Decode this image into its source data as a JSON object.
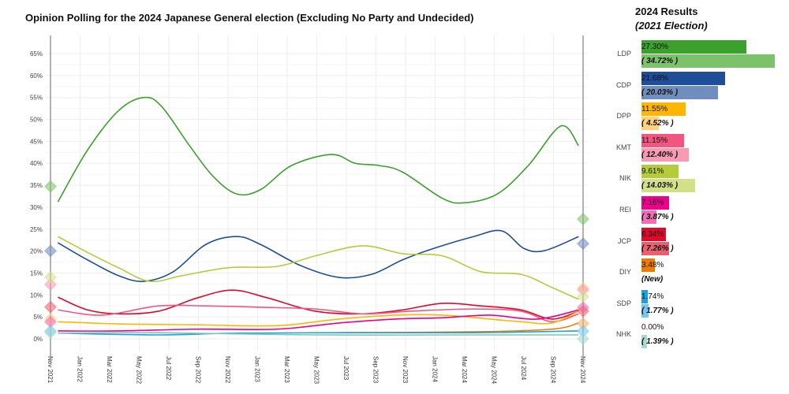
{
  "chart_data": {
    "type": "line",
    "title": "Opinion Polling for the 2024 Japanese General election (Excluding No Party and Undecided)",
    "x_ticks": [
      "Nov 2021",
      "Jan 2022",
      "Mar 2022",
      "May 2022",
      "Jul 2022",
      "Sep 2022",
      "Nov 2022",
      "Jan 2023",
      "Mar 2023",
      "May 2023",
      "Jul 2023",
      "Sep 2023",
      "Nov 2023",
      "Jan 2024",
      "Mar 2024",
      "May 2024",
      "Jul 2024",
      "Sep 2024",
      "Nov 2024"
    ],
    "y_ticks": [
      "0%",
      "5%",
      "10%",
      "15%",
      "20%",
      "25%",
      "30%",
      "35%",
      "40%",
      "45%",
      "50%",
      "55%",
      "60%",
      "65%"
    ],
    "ylim": [
      0,
      65
    ],
    "x_unit": "months since Nov 2021",
    "grid": true,
    "series": [
      {
        "name": "LDP",
        "color": "#3ca02c",
        "trend": [
          [
            0.5,
            31.2
          ],
          [
            2.5,
            43
          ],
          [
            4.6,
            52
          ],
          [
            6.3,
            55
          ],
          [
            7.5,
            53
          ],
          [
            9.4,
            44
          ],
          [
            11,
            37
          ],
          [
            12.6,
            33
          ],
          [
            14.2,
            34
          ],
          [
            16.3,
            39.5
          ],
          [
            19,
            42
          ],
          [
            20.6,
            40
          ],
          [
            22.2,
            39.5
          ],
          [
            23.8,
            38
          ],
          [
            26.5,
            32
          ],
          [
            28,
            31
          ],
          [
            30.2,
            33
          ],
          [
            32.3,
            39.5
          ],
          [
            34.5,
            48.5
          ],
          [
            35.7,
            44
          ]
        ]
      },
      {
        "name": "CDP",
        "color": "#1f4e99",
        "trend": [
          [
            0.5,
            21.9
          ],
          [
            2.5,
            18
          ],
          [
            4.6,
            14.4
          ],
          [
            6.3,
            13.1
          ],
          [
            8.3,
            15.3
          ],
          [
            10.5,
            21.5
          ],
          [
            12.6,
            23.3
          ],
          [
            14.2,
            21.5
          ],
          [
            16.9,
            16.7
          ],
          [
            19.5,
            14
          ],
          [
            21.7,
            14.7
          ],
          [
            23.8,
            18
          ],
          [
            25.9,
            20.6
          ],
          [
            28.6,
            23.3
          ],
          [
            30.5,
            24.6
          ],
          [
            32,
            20.6
          ],
          [
            33.4,
            20.1
          ],
          [
            35.7,
            23.3
          ]
        ]
      },
      {
        "name": "NIK",
        "color": "#b5cc3a",
        "trend": [
          [
            0.5,
            23.3
          ],
          [
            2.5,
            19.7
          ],
          [
            4.6,
            16.2
          ],
          [
            6.7,
            13.1
          ],
          [
            8.9,
            14.4
          ],
          [
            12,
            16.2
          ],
          [
            15.3,
            16.5
          ],
          [
            17.9,
            18.9
          ],
          [
            21.1,
            21.2
          ],
          [
            23.8,
            19.4
          ],
          [
            26.5,
            18.9
          ],
          [
            29.1,
            15.3
          ],
          [
            31.8,
            14.7
          ],
          [
            33.9,
            11.7
          ],
          [
            35.7,
            9
          ]
        ]
      },
      {
        "name": "JCP",
        "color": "#de0a2b",
        "trend": [
          [
            0.5,
            9.5
          ],
          [
            2.5,
            6.6
          ],
          [
            4.6,
            5.7
          ],
          [
            7.3,
            6.3
          ],
          [
            9.9,
            9.3
          ],
          [
            12.3,
            11.1
          ],
          [
            14.7,
            9.3
          ],
          [
            17.9,
            6.3
          ],
          [
            21.1,
            5.7
          ],
          [
            23.8,
            6.6
          ],
          [
            26.5,
            8.1
          ],
          [
            29.1,
            7.5
          ],
          [
            31.8,
            6.6
          ],
          [
            33.9,
            4.5
          ],
          [
            35.7,
            6.3
          ]
        ]
      },
      {
        "name": "KMT",
        "color": "#f2557f",
        "trend": [
          [
            0.5,
            6.6
          ],
          [
            3.5,
            5.4
          ],
          [
            7.3,
            7.5
          ],
          [
            10.5,
            7.5
          ],
          [
            14.2,
            7.2
          ],
          [
            17.9,
            6.8
          ],
          [
            21.1,
            5.7
          ],
          [
            24.3,
            6.3
          ],
          [
            28.6,
            6.8
          ],
          [
            31.8,
            6.3
          ],
          [
            33.9,
            3.9
          ],
          [
            35.7,
            5.7
          ]
        ]
      },
      {
        "name": "DPP",
        "color": "#ffb600",
        "trend": [
          [
            0.5,
            3.9
          ],
          [
            4.6,
            3.4
          ],
          [
            9.9,
            3.2
          ],
          [
            15.3,
            3
          ],
          [
            19.5,
            4.5
          ],
          [
            23.3,
            5.4
          ],
          [
            26.5,
            5.4
          ],
          [
            29.7,
            4.5
          ],
          [
            31.8,
            3.9
          ],
          [
            33.9,
            3.6
          ],
          [
            35.7,
            6.3
          ]
        ]
      },
      {
        "name": "REI",
        "color": "#ec008c",
        "trend": [
          [
            0.5,
            1.8
          ],
          [
            4.6,
            1.8
          ],
          [
            9.9,
            2.2
          ],
          [
            15.3,
            2.2
          ],
          [
            19.5,
            3.6
          ],
          [
            23.3,
            4.5
          ],
          [
            26.5,
            4.8
          ],
          [
            29.7,
            5.4
          ],
          [
            32.9,
            4.5
          ],
          [
            35.7,
            6.6
          ]
        ]
      },
      {
        "name": "DIY",
        "color": "#ee7c00",
        "trend": [
          [
            19.5,
            1.4
          ],
          [
            28.6,
            1.6
          ],
          [
            33.9,
            2.2
          ],
          [
            35.7,
            3.6
          ]
        ]
      },
      {
        "name": "SDP",
        "color": "#1aa4dd",
        "trend": [
          [
            0.5,
            1.3
          ],
          [
            7.3,
            0.9
          ],
          [
            12.6,
            1.3
          ],
          [
            20.6,
            1.4
          ],
          [
            28.6,
            1.4
          ],
          [
            35.7,
            1.8
          ]
        ]
      },
      {
        "name": "NHK",
        "color": "#7cc6b8",
        "trend": [
          [
            0.5,
            1.3
          ],
          [
            7.3,
            1.4
          ],
          [
            17.9,
            0.9
          ],
          [
            28.6,
            0.9
          ],
          [
            35.7,
            0.9
          ]
        ]
      }
    ]
  },
  "results_panel": {
    "heading": "2024 Results",
    "subheading": "(2021 Election)",
    "parties": [
      {
        "name": "LDP",
        "result_2024": 27.3,
        "label_2024": "27.30%",
        "result_2021": 34.72,
        "label_2021": "( 34.72% )",
        "color": "#3ca02c",
        "color_2021": "#7bc26a"
      },
      {
        "name": "CDP",
        "result_2024": 21.68,
        "label_2024": "21.68%",
        "result_2021": 20.03,
        "label_2021": "( 20.03% )",
        "color": "#1f4e99",
        "color_2021": "#6f8dbd"
      },
      {
        "name": "DPP",
        "result_2024": 11.55,
        "label_2024": "11.55%",
        "result_2021": 4.52,
        "label_2021": "( 4.52% )",
        "color": "#ffb600",
        "color_2021": "#ffd27a"
      },
      {
        "name": "KMT",
        "result_2024": 11.15,
        "label_2024": "11.15%",
        "result_2021": 12.4,
        "label_2021": "( 12.40% )",
        "color": "#f2557f",
        "color_2021": "#f79ab4"
      },
      {
        "name": "NIK",
        "result_2024": 9.61,
        "label_2024": "9.61%",
        "result_2021": 14.03,
        "label_2021": "( 14.03% )",
        "color": "#b5cc3a",
        "color_2021": "#d3e08a"
      },
      {
        "name": "REI",
        "result_2024": 7.16,
        "label_2024": "7.16%",
        "result_2021": 3.87,
        "label_2021": "( 3.87% )",
        "color": "#ec008c",
        "color_2021": "#f06eb5"
      },
      {
        "name": "JCP",
        "result_2024": 6.34,
        "label_2024": "6.34%",
        "result_2021": 7.26,
        "label_2021": "( 7.26% )",
        "color": "#de0a2b",
        "color_2021": "#e96070"
      },
      {
        "name": "DIY",
        "result_2024": 3.48,
        "label_2024": "3.48%",
        "result_2021": null,
        "label_2021": "(New)",
        "color": "#ee7c00",
        "color_2021": "#f5b066"
      },
      {
        "name": "SDP",
        "result_2024": 1.74,
        "label_2024": "1.74%",
        "result_2021": 1.77,
        "label_2021": "( 1.77% )",
        "color": "#1aa4dd",
        "color_2021": "#72c7ee"
      },
      {
        "name": "NHK",
        "result_2024": 0.0,
        "label_2024": "0.00%",
        "result_2021": 1.39,
        "label_2021": "( 1.39% )",
        "color": "#7cc6b8",
        "color_2021": "#a8d9cf"
      }
    ]
  }
}
